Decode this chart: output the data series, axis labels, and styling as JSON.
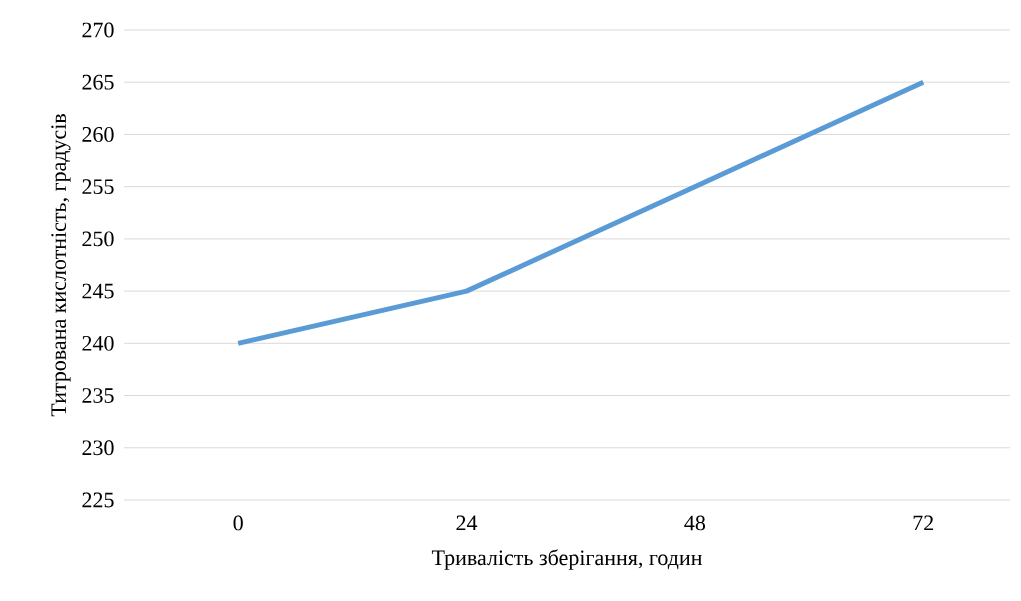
{
  "chart_data": {
    "type": "line",
    "xlabel": "Тривалість зберігання, годин",
    "ylabel": "Титрована кислотність, градусів",
    "categories": [
      "0",
      "24",
      "48",
      "72"
    ],
    "series": [
      {
        "color": "#5b9bd5",
        "values": [
          240,
          245,
          255,
          265
        ]
      }
    ],
    "ylim": [
      225,
      270
    ],
    "yticks": [
      225,
      230,
      235,
      240,
      245,
      250,
      255,
      260,
      265,
      270
    ],
    "grid": "y",
    "marker": "none",
    "line_style": "solid"
  }
}
